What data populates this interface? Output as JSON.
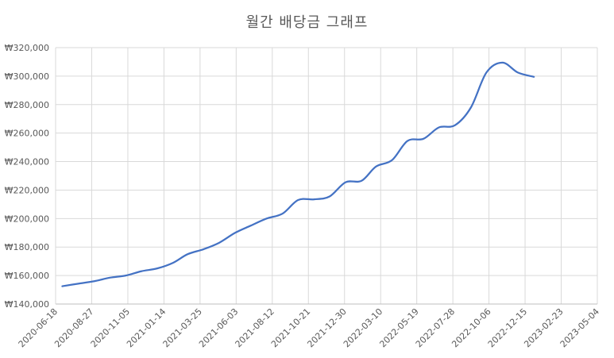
{
  "chart_data": {
    "type": "line",
    "title": "월간 배당금 그래프",
    "xlabel": "",
    "ylabel": "",
    "ylim": [
      140000,
      320000
    ],
    "yticks": [
      "₩140,000",
      "₩160,000",
      "₩180,000",
      "₩200,000",
      "₩220,000",
      "₩240,000",
      "₩260,000",
      "₩280,000",
      "₩300,000",
      "₩320,000"
    ],
    "xlim": [
      "2020-06-18",
      "2023-05-04"
    ],
    "xticks": [
      "2020-06-18",
      "2020-08-27",
      "2020-11-05",
      "2021-01-14",
      "2021-03-25",
      "2021-06-03",
      "2021-08-12",
      "2021-10-21",
      "2021-12-30",
      "2022-03-10",
      "2022-05-19",
      "2022-07-28",
      "2022-10-06",
      "2022-12-15",
      "2023-02-23",
      "2023-05-04"
    ],
    "grid": true,
    "legend": "none",
    "series": [
      {
        "color": "#4472c4",
        "x": [
          "2020-07-01",
          "2020-08-01",
          "2020-09-01",
          "2020-10-01",
          "2020-11-01",
          "2020-12-01",
          "2021-01-01",
          "2021-02-01",
          "2021-03-01",
          "2021-04-01",
          "2021-05-01",
          "2021-06-01",
          "2021-07-01",
          "2021-08-01",
          "2021-09-01",
          "2021-10-01",
          "2021-11-01",
          "2021-12-01",
          "2022-01-01",
          "2022-02-01",
          "2022-03-01",
          "2022-04-01",
          "2022-05-01",
          "2022-06-01",
          "2022-07-01",
          "2022-08-01",
          "2022-09-01",
          "2022-10-01",
          "2022-11-01",
          "2022-12-01",
          "2023-01-01"
        ],
        "values": [
          152500,
          154300,
          156000,
          158500,
          160000,
          163000,
          165000,
          169000,
          175000,
          178500,
          183000,
          190000,
          195000,
          200000,
          203500,
          213000,
          213500,
          215500,
          225500,
          226500,
          236500,
          241000,
          254500,
          256000,
          264000,
          265500,
          278000,
          302500,
          309500,
          302500,
          299500
        ]
      }
    ]
  }
}
